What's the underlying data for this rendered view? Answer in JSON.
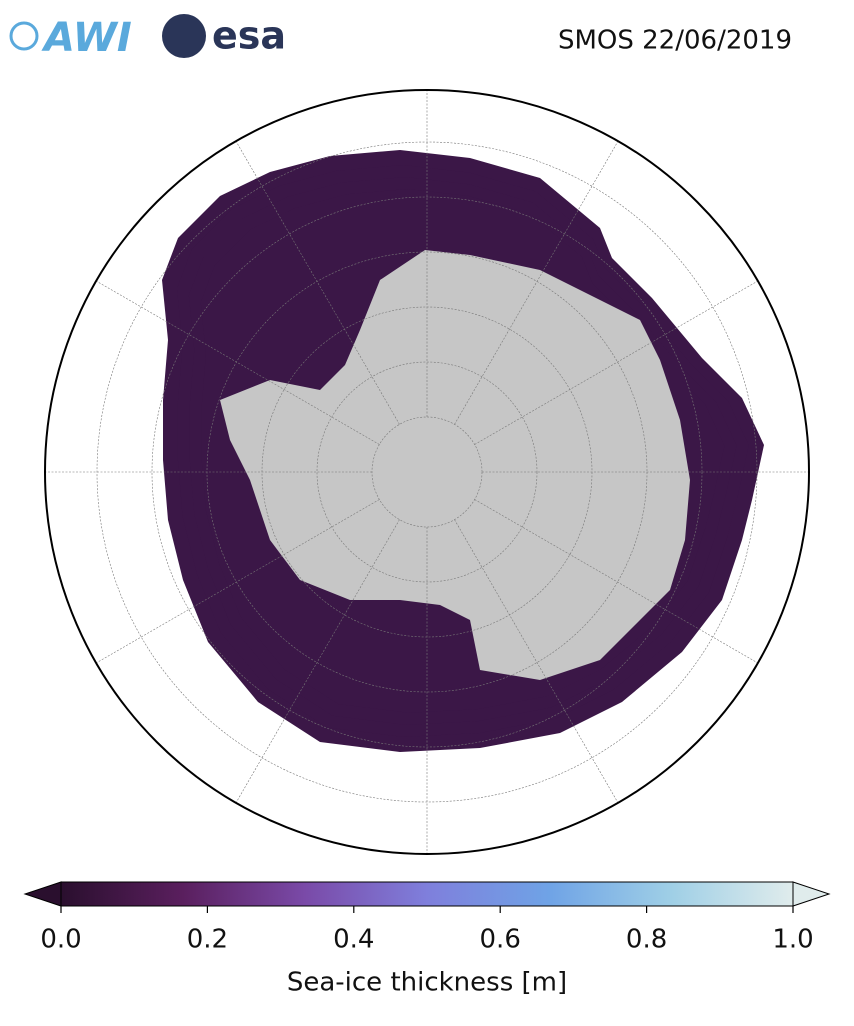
{
  "header": {
    "logos": [
      "AWI",
      "esa"
    ],
    "title": "SMOS 22/06/2019"
  },
  "colorbar": {
    "label": "Sea-ice thickness [m]",
    "lim": [
      0,
      1
    ],
    "ticks": [
      {
        "value": 0,
        "label": "0.0"
      },
      0.2,
      0.4,
      0.6,
      0.8,
      {
        "value": 1,
        "label": "1.0"
      }
    ],
    "colors": [
      "#2a0f2e",
      "#5a1f5e",
      "#7a4aa8",
      "#7f7fdc",
      "#6fa3e6",
      "#9fcfe6",
      "#e0ecec"
    ],
    "extend": "both"
  }
}
